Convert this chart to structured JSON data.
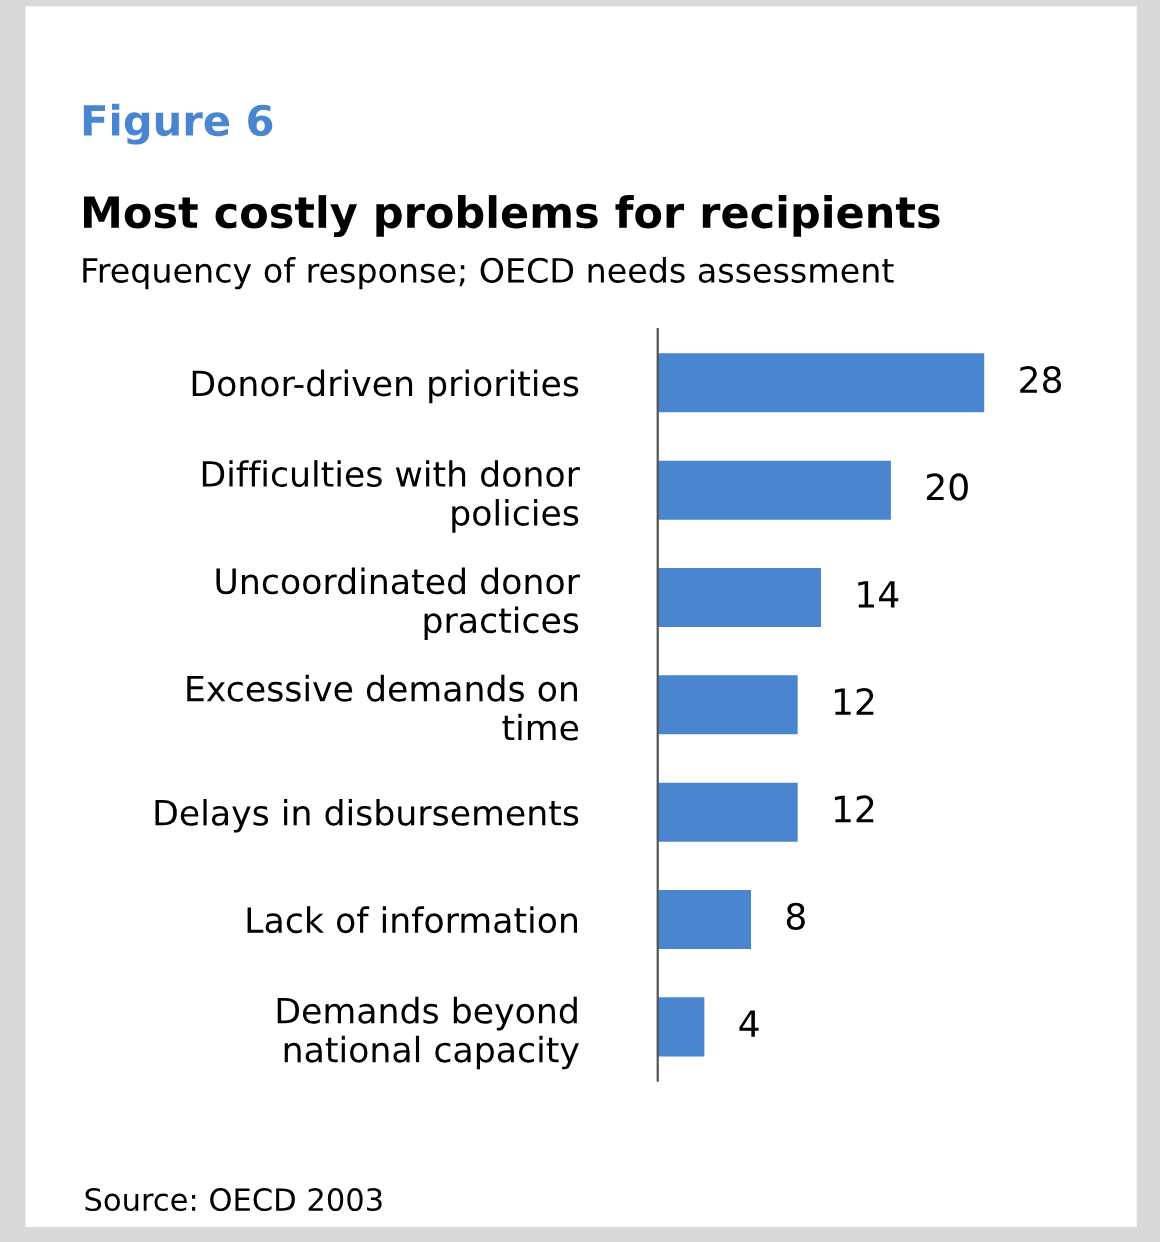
{
  "chart_data": {
    "type": "bar",
    "orientation": "horizontal",
    "title": "Most costly problems for recipients",
    "subtitle": "Frequency of response; OECD needs assessment",
    "categories": [
      "Donor-driven priorities",
      "Difficulties with donor\npolicies",
      "Uncoordinated donor\npractices",
      "Excessive demands on\ntime",
      "Delays in disbursements",
      "Lack of information",
      "Demands beyond\nnational capacity"
    ],
    "values": [
      28,
      20,
      14,
      12,
      12,
      8,
      4
    ],
    "color": "#4a86d0",
    "data_labels": true,
    "annotations": [
      "Figure 6",
      "Source: OECD 2003"
    ]
  }
}
